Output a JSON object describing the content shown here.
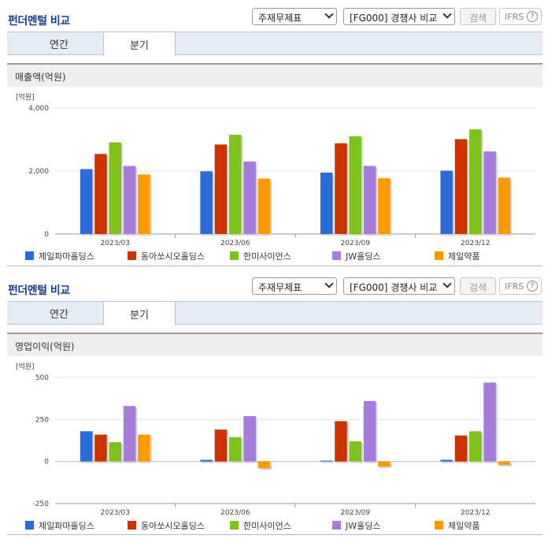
{
  "panels": [
    {
      "header_title": "펀더멘털 비교",
      "select1": "주재무제표",
      "select2": "[FG000] 경쟁사 비교",
      "search_label": "검색",
      "ifrs_label": "IFRS",
      "help_glyph": "?",
      "tabs": [
        {
          "label": "연간"
        },
        {
          "label": "분기"
        }
      ],
      "active_tab": "분기",
      "subheader": "매출액(억원)"
    },
    {
      "header_title": "펀더멘털 비교",
      "select1": "주재무제표",
      "select2": "[FG000] 경쟁사 비교",
      "search_label": "검색",
      "ifrs_label": "IFRS",
      "help_glyph": "?",
      "tabs": [
        {
          "label": "연간"
        },
        {
          "label": "분기"
        }
      ],
      "active_tab": "분기",
      "subheader": "영업이익(억원)"
    }
  ],
  "chart_data": [
    {
      "type": "bar",
      "unit_label": "[억원]",
      "categories": [
        "2023/03",
        "2023/06",
        "2023/09",
        "2023/12"
      ],
      "ylim": [
        0,
        4000
      ],
      "yticks": [
        0,
        2000,
        4000
      ],
      "ytick_labels": [
        "0",
        "2,000",
        "4,000"
      ],
      "grid": true,
      "legend_position": "bottom",
      "series": [
        {
          "name": "제일파마홀딩스",
          "color": "#2a6ad9",
          "values": [
            2060,
            1990,
            1950,
            2010
          ]
        },
        {
          "name": "동아쏘시오홀딩스",
          "color": "#cc3300",
          "values": [
            2540,
            2840,
            2880,
            3010
          ]
        },
        {
          "name": "한미사이언스",
          "color": "#80c21c",
          "values": [
            2910,
            3150,
            3100,
            3320
          ]
        },
        {
          "name": "JW홀딩스",
          "color": "#a57bdb",
          "values": [
            2160,
            2300,
            2160,
            2620
          ]
        },
        {
          "name": "제일약품",
          "color": "#ff9900",
          "values": [
            1890,
            1760,
            1770,
            1790
          ]
        }
      ]
    },
    {
      "type": "bar",
      "unit_label": "[억원]",
      "categories": [
        "2023/03",
        "2023/06",
        "2023/09",
        "2023/12"
      ],
      "ylim": [
        -250,
        500
      ],
      "yticks": [
        -250,
        0,
        250,
        500
      ],
      "ytick_labels": [
        "-250",
        "0",
        "250",
        "500"
      ],
      "grid": true,
      "legend_position": "bottom",
      "series": [
        {
          "name": "제일파마홀딩스",
          "color": "#2a6ad9",
          "values": [
            180,
            10,
            5,
            10
          ]
        },
        {
          "name": "동아쏘시오홀딩스",
          "color": "#cc3300",
          "values": [
            160,
            190,
            240,
            155
          ]
        },
        {
          "name": "한미사이언스",
          "color": "#80c21c",
          "values": [
            115,
            145,
            120,
            180
          ]
        },
        {
          "name": "JW홀딩스",
          "color": "#a57bdb",
          "values": [
            330,
            270,
            360,
            470
          ]
        },
        {
          "name": "제일약품",
          "color": "#ff9900",
          "values": [
            160,
            -40,
            -30,
            -20
          ]
        }
      ]
    }
  ]
}
